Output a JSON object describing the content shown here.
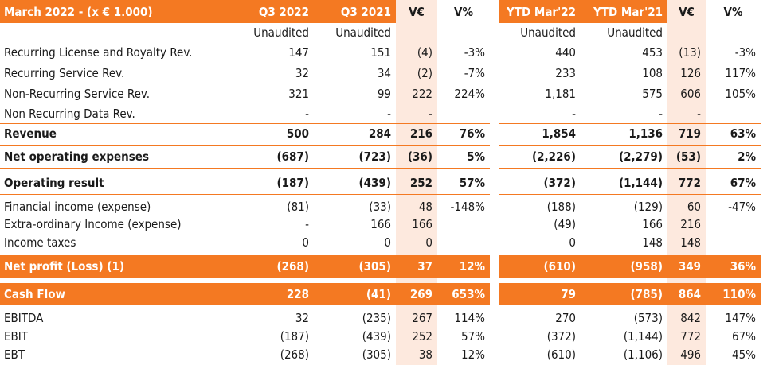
{
  "header": {
    "title": "March 2022 - (x € 1.000)",
    "q3_2022": "Q3 2022",
    "q3_2021": "Q3 2021",
    "var_eur": "V€",
    "var_pct": "V%",
    "ytd_2022": "YTD Mar'22",
    "ytd_2021": "YTD Mar'21",
    "var_eur2": "V€",
    "var_pct2": "V%"
  },
  "subheader": {
    "q3_2022": "Unaudited",
    "q3_2021": "Unaudited",
    "ytd_2022": "Unaudited",
    "ytd_2021": "Unaudited"
  },
  "rows": [
    {
      "label": "Recurring License and Royalty Rev.",
      "q3_2022": "147",
      "q3_2021": "151",
      "var_eur": "(4)",
      "var_pct": "-3%",
      "ytd_2022": "440",
      "ytd_2021": "453",
      "ytd_var_eur": "(13)",
      "ytd_var_pct": "-3%"
    },
    {
      "label": "Recurring Service Rev.",
      "q3_2022": "32",
      "q3_2021": "34",
      "var_eur": "(2)",
      "var_pct": "-7%",
      "ytd_2022": "233",
      "ytd_2021": "108",
      "ytd_var_eur": "126",
      "ytd_var_pct": "117%"
    },
    {
      "label": "Non-Recurring Service Rev.",
      "q3_2022": "321",
      "q3_2021": "99",
      "var_eur": "222",
      "var_pct": "224%",
      "ytd_2022": "1,181",
      "ytd_2021": "575",
      "ytd_var_eur": "606",
      "ytd_var_pct": "105%"
    },
    {
      "label": "Non Recurring Data Rev.",
      "q3_2022": "-",
      "q3_2021": "-",
      "var_eur": "-",
      "var_pct": "",
      "ytd_2022": "-",
      "ytd_2021": "-",
      "ytd_var_eur": "-",
      "ytd_var_pct": ""
    },
    {
      "label": "Revenue",
      "q3_2022": "500",
      "q3_2021": "284",
      "var_eur": "216",
      "var_pct": "76%",
      "ytd_2022": "1,854",
      "ytd_2021": "1,136",
      "ytd_var_eur": "719",
      "ytd_var_pct": "63%"
    },
    {
      "label": "Net operating expenses",
      "q3_2022": "(687)",
      "q3_2021": "(723)",
      "var_eur": "(36)",
      "var_pct": "5%",
      "ytd_2022": "(2,226)",
      "ytd_2021": "(2,279)",
      "ytd_var_eur": "(53)",
      "ytd_var_pct": "2%"
    },
    {
      "label": "Operating result",
      "q3_2022": "(187)",
      "q3_2021": "(439)",
      "var_eur": "252",
      "var_pct": "57%",
      "ytd_2022": "(372)",
      "ytd_2021": "(1,144)",
      "ytd_var_eur": "772",
      "ytd_var_pct": "67%"
    },
    {
      "label": "Financial income (expense)",
      "q3_2022": "(81)",
      "q3_2021": "(33)",
      "var_eur": "48",
      "var_pct": "-148%",
      "ytd_2022": "(188)",
      "ytd_2021": "(129)",
      "ytd_var_eur": "60",
      "ytd_var_pct": "-47%"
    },
    {
      "label": "Extra-ordinary Income (expense)",
      "q3_2022": "-",
      "q3_2021": "166",
      "var_eur": "166",
      "var_pct": "",
      "ytd_2022": "(49)",
      "ytd_2021": "166",
      "ytd_var_eur": "216",
      "ytd_var_pct": ""
    },
    {
      "label": "Income taxes",
      "q3_2022": "0",
      "q3_2021": "0",
      "var_eur": "0",
      "var_pct": "",
      "ytd_2022": "0",
      "ytd_2021": "148",
      "ytd_var_eur": "148",
      "ytd_var_pct": ""
    },
    {
      "label": "Net profit (Loss) (1)",
      "q3_2022": "(268)",
      "q3_2021": "(305)",
      "var_eur": "37",
      "var_pct": "12%",
      "ytd_2022": "(610)",
      "ytd_2021": "(958)",
      "ytd_var_eur": "349",
      "ytd_var_pct": "36%"
    },
    {
      "label": "Cash Flow",
      "q3_2022": "228",
      "q3_2021": "(41)",
      "var_eur": "269",
      "var_pct": "653%",
      "ytd_2022": "79",
      "ytd_2021": "(785)",
      "ytd_var_eur": "864",
      "ytd_var_pct": "110%"
    },
    {
      "label": "EBITDA",
      "q3_2022": "32",
      "q3_2021": "(235)",
      "var_eur": "267",
      "var_pct": "114%",
      "ytd_2022": "270",
      "ytd_2021": "(573)",
      "ytd_var_eur": "842",
      "ytd_var_pct": "147%"
    },
    {
      "label": "EBIT",
      "q3_2022": "(187)",
      "q3_2021": "(439)",
      "var_eur": "252",
      "var_pct": "57%",
      "ytd_2022": "(372)",
      "ytd_2021": "(1,144)",
      "ytd_var_eur": "772",
      "ytd_var_pct": "67%"
    },
    {
      "label": "EBT",
      "q3_2022": "(268)",
      "q3_2021": "(305)",
      "var_eur": "38",
      "var_pct": "12%",
      "ytd_2022": "(610)",
      "ytd_2021": "(1,106)",
      "ytd_var_eur": "496",
      "ytd_var_pct": "45%"
    }
  ]
}
